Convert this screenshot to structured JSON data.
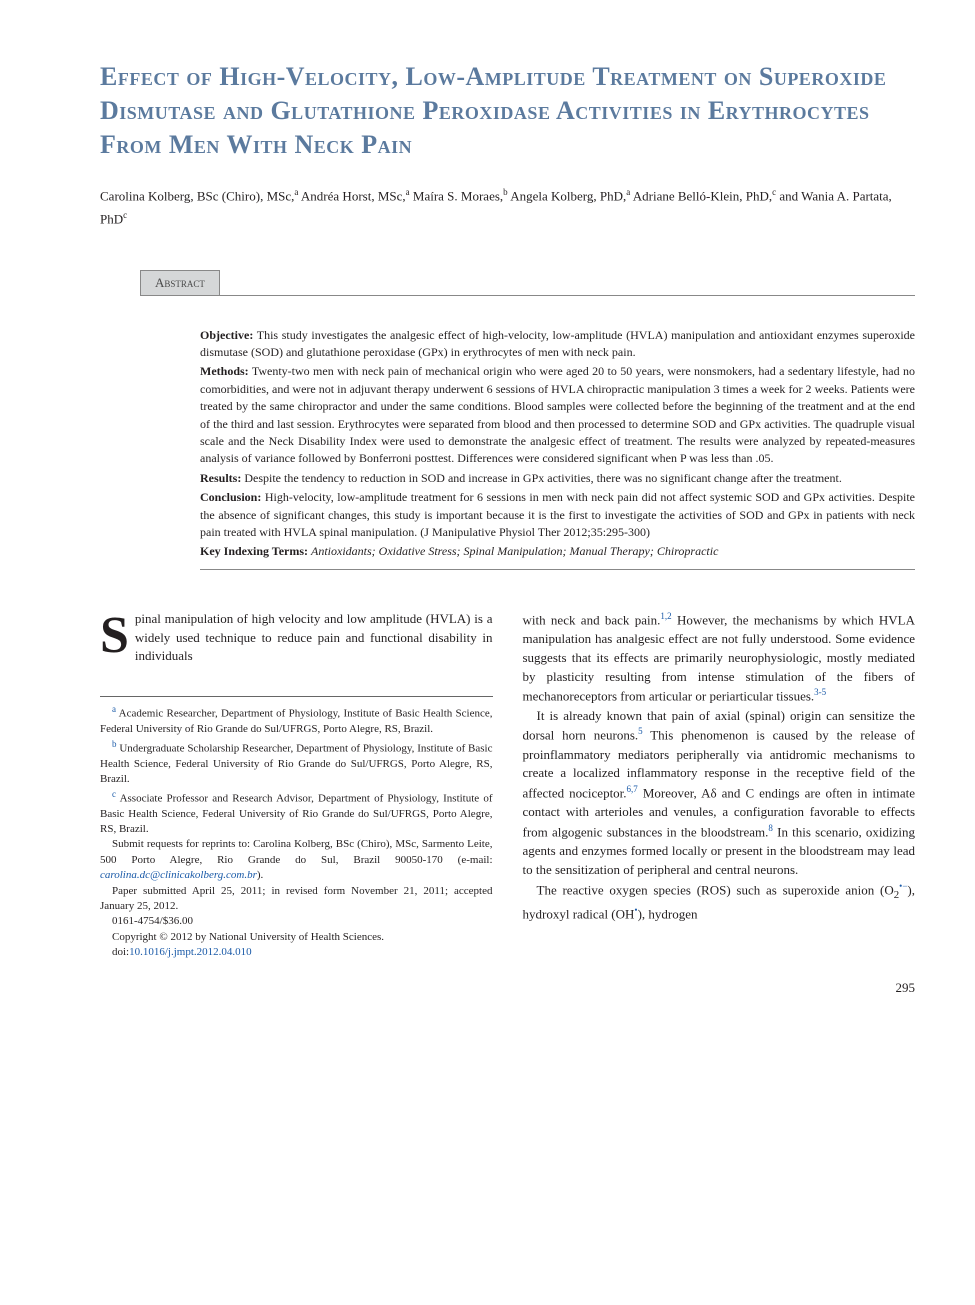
{
  "title": "Effect of High-Velocity, Low-Amplitude Treatment on Superoxide Dismutase and Glutathione Peroxidase Activities in Erythrocytes From Men With Neck Pain",
  "authors_html": "Carolina Kolberg, BSc (Chiro), MSc,<sup>a</sup> Andréa Horst, MSc,<sup>a</sup> Maíra S. Moraes,<sup>b</sup> Angela Kolberg, PhD,<sup>a</sup> Adriane Belló-Klein, PhD,<sup>c</sup> and Wania A. Partata, PhD<sup>c</sup>",
  "abstract_label": "Abstract",
  "abstract": {
    "objective": {
      "label": "Objective:",
      "text": "This study investigates the analgesic effect of high-velocity, low-amplitude (HVLA) manipulation and antioxidant enzymes superoxide dismutase (SOD) and glutathione peroxidase (GPx) in erythrocytes of men with neck pain."
    },
    "methods": {
      "label": "Methods:",
      "text": "Twenty-two men with neck pain of mechanical origin who were aged 20 to 50 years, were nonsmokers, had a sedentary lifestyle, had no comorbidities, and were not in adjuvant therapy underwent 6 sessions of HVLA chiropractic manipulation 3 times a week for 2 weeks. Patients were treated by the same chiropractor and under the same conditions. Blood samples were collected before the beginning of the treatment and at the end of the third and last session. Erythrocytes were separated from blood and then processed to determine SOD and GPx activities. The quadruple visual scale and the Neck Disability Index were used to demonstrate the analgesic effect of treatment. The results were analyzed by repeated-measures analysis of variance followed by Bonferroni posttest. Differences were considered significant when P was less than .05."
    },
    "results": {
      "label": "Results:",
      "text": "Despite the tendency to reduction in SOD and increase in GPx activities, there was no significant change after the treatment."
    },
    "conclusion": {
      "label": "Conclusion:",
      "text": "High-velocity, low-amplitude treatment for 6 sessions in men with neck pain did not affect systemic SOD and GPx activities. Despite the absence of significant changes, this study is important because it is the first to investigate the activities of SOD and GPx in patients with neck pain treated with HVLA spinal manipulation. (J Manipulative Physiol Ther 2012;35:295-300)"
    },
    "keywords": {
      "label": "Key Indexing Terms:",
      "text": "Antioxidants; Oxidative Stress; Spinal Manipulation; Manual Therapy; Chiropractic"
    }
  },
  "body": {
    "dropcap": "S",
    "col1_p1": "pinal manipulation of high velocity and low amplitude (HVLA) is a widely used technique to reduce pain and functional disability in individuals",
    "col2_p1_html": "with neck and back pain.<sup>1,2</sup> However, the mechanisms by which HVLA manipulation has analgesic effect are not fully understood. Some evidence suggests that its effects are primarily neurophysiologic, mostly mediated by plasticity resulting from intense stimulation of the fibers of mechanoreceptors from articular or periarticular tissues.<sup>3-5</sup>",
    "col2_p2_html": "It is already known that pain of axial (spinal) origin can sensitize the dorsal horn neurons.<sup>5</sup> This phenomenon is caused by the release of proinflammatory mediators peripherally via antidromic mechanisms to create a localized inflammatory response in the receptive field of the affected nociceptor.<sup>6,7</sup> Moreover, Aδ and C endings are often in intimate contact with arterioles and venules, a configuration favorable to effects from algogenic substances in the bloodstream.<sup>8</sup> In this scenario, oxidizing agents and enzymes formed locally or present in the bloodstream may lead to the sensitization of peripheral and central neurons.",
    "col2_p3_html": "The reactive oxygen species (ROS) such as superoxide anion (O<sub>2</sub><sup>•−</sup>), hydroxyl radical (OH<sup>•</sup>), hydrogen"
  },
  "footnotes": {
    "a": "Academic Researcher, Department of Physiology, Institute of Basic Health Science, Federal University of Rio Grande do Sul/UFRGS, Porto Alegre, RS, Brazil.",
    "b": "Undergraduate Scholarship Researcher, Department of Physiology, Institute of Basic Health Science, Federal University of Rio Grande do Sul/UFRGS, Porto Alegre, RS, Brazil.",
    "c": "Associate Professor and Research Advisor, Department of Physiology, Institute of Basic Health Science, Federal University of Rio Grande do Sul/UFRGS, Porto Alegre, RS, Brazil.",
    "reprints_pre": "Submit requests for reprints to: Carolina Kolberg, BSc (Chiro), MSc, Sarmento Leite, 500 Porto Alegre, Rio Grande do Sul, Brazil 90050-170 (e-mail: ",
    "reprints_email": "carolina.dc@clinicakolberg.com.br",
    "reprints_post": ").",
    "submitted": "Paper submitted April 25, 2011; in revised form November 21, 2011; accepted January 25, 2012.",
    "issn": "0161-4754/$36.00",
    "copyright": "Copyright © 2012 by National University of Health Sciences.",
    "doi_label": "doi:",
    "doi": "10.1016/j.jmpt.2012.04.010"
  },
  "page_number": "295",
  "colors": {
    "title": "#5b7a9e",
    "text": "#231f20",
    "link": "#1a5aa8",
    "abstract_bg": "#d5d7d8",
    "rule": "#888888"
  },
  "typography": {
    "title_fontsize": 26,
    "body_fontsize": 13,
    "abstract_fontsize": 12,
    "footnote_fontsize": 11,
    "dropcap_fontsize": 52,
    "font_family": "Georgia, Times New Roman, serif"
  }
}
